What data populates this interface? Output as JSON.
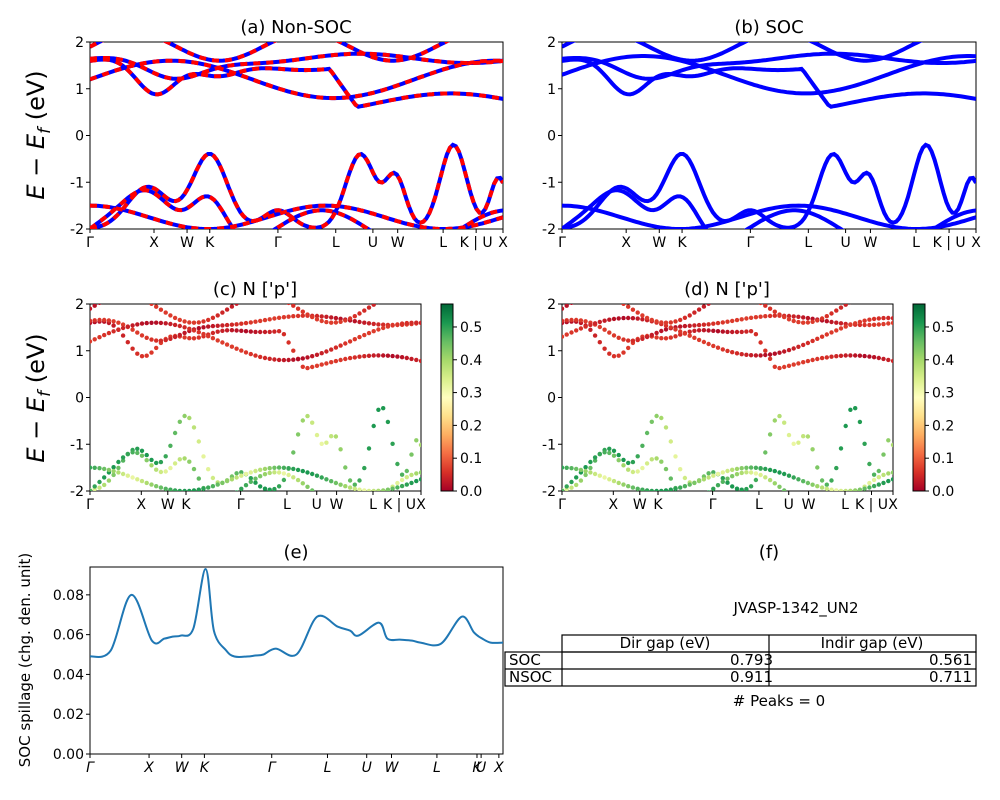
{
  "figure": {
    "ylabel_main": "E − E",
    "ylabel_sub": "f",
    "ylabel_unit": " (eV)",
    "kpath_labels": [
      "Γ",
      "X",
      "W",
      "K",
      "Γ",
      "L",
      "U",
      "W",
      "L",
      "K | U",
      "X"
    ],
    "kpath_labels_f": [
      "Γ",
      "X",
      "W",
      "K",
      "Γ",
      "L",
      "U",
      "W",
      "L",
      "K",
      "U",
      "X"
    ]
  },
  "chart_data": [
    {
      "id": "a",
      "type": "line",
      "title": "(a) Non-SOC",
      "ylim": [
        -2,
        2
      ],
      "yticks": [
        -2,
        -1,
        0,
        1,
        2
      ],
      "description_series": [
        "Non-SOC bands (blue)",
        "SOC-overlay bands (red dashed)"
      ],
      "colors": {
        "primary": "#0000ff",
        "overlay": "#ff0000"
      }
    },
    {
      "id": "b",
      "type": "line",
      "title": "(b) SOC",
      "ylim": [
        -2,
        2
      ],
      "yticks": [
        -2,
        -1,
        0,
        1,
        2
      ],
      "colors": {
        "primary": "#0000ff"
      }
    },
    {
      "id": "c",
      "type": "scatter",
      "title": "(c)  N ['p']",
      "ylim": [
        -2,
        2
      ],
      "yticks": [
        -2,
        -1,
        0,
        1,
        2
      ],
      "colorbar": {
        "min": 0.0,
        "max": 0.57,
        "ticks": [
          "0.0",
          "0.1",
          "0.2",
          "0.3",
          "0.4",
          "0.5"
        ],
        "cmap": "RdYlGn"
      }
    },
    {
      "id": "d",
      "type": "scatter",
      "title": "(d) N ['p']",
      "ylim": [
        -2,
        2
      ],
      "yticks": [
        -2,
        -1,
        0,
        1,
        2
      ],
      "colorbar": {
        "min": 0.0,
        "max": 0.57,
        "ticks": [
          "0.0",
          "0.1",
          "0.2",
          "0.3",
          "0.4",
          "0.5"
        ],
        "cmap": "RdYlGn"
      }
    },
    {
      "id": "e",
      "type": "line",
      "title": "(e)",
      "ylabel": "SOC spillage (chg. den. unit)",
      "ylim": [
        0.0,
        0.094
      ],
      "yticks": [
        "0.00",
        "0.02",
        "0.04",
        "0.06",
        "0.08"
      ],
      "x": [
        0,
        0.05,
        0.1,
        0.15,
        0.18,
        0.2,
        0.22,
        0.25,
        0.28,
        0.3,
        0.33,
        0.35,
        0.38,
        0.4,
        0.42,
        0.45,
        0.5,
        0.55,
        0.6,
        0.63,
        0.65,
        0.7,
        0.72,
        0.75,
        0.78,
        0.8,
        0.85,
        0.9,
        0.93,
        0.95,
        0.97,
        1.0
      ],
      "values": [
        0.049,
        0.052,
        0.08,
        0.057,
        0.058,
        0.059,
        0.0595,
        0.063,
        0.093,
        0.062,
        0.052,
        0.049,
        0.049,
        0.0495,
        0.05,
        0.053,
        0.05,
        0.069,
        0.064,
        0.062,
        0.0595,
        0.066,
        0.058,
        0.0575,
        0.057,
        0.056,
        0.0555,
        0.069,
        0.061,
        0.058,
        0.056,
        0.056
      ],
      "color": "#1f77b4"
    }
  ],
  "table_f": {
    "title": "(f)",
    "material": "JVASP-1342_UN2",
    "col_headers": [
      "Dir gap (eV)",
      "Indir gap (eV)"
    ],
    "rows": [
      {
        "label": "SOC",
        "dir": "0.793",
        "indir": "0.561"
      },
      {
        "label": "NSOC",
        "dir": "0.911",
        "indir": "0.711"
      }
    ],
    "footer": "# Peaks = 0"
  }
}
